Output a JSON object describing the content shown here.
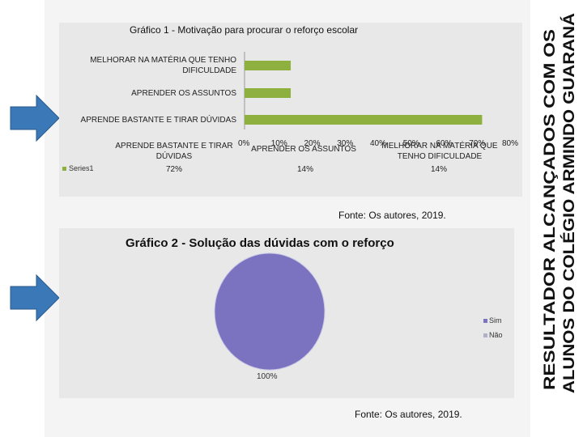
{
  "side_title": {
    "line1": "RESULTADOR ALCANÇADOS COM OS",
    "line2": "ALUNOS DO COLÉGIO ARMINDO GUARANÁ"
  },
  "chart1_source": "Fonte: Os autores, 2019.",
  "chart2_source": "Fonte: Os autores, 2019.",
  "colors": {
    "bar": "#8db03e",
    "pie_sim": "#7b73c0",
    "arrow": "#3a78b8",
    "panel": "#e8e8e8"
  },
  "chart_data": [
    {
      "type": "bar",
      "orientation": "horizontal",
      "title": "Gráfico 1 - Motivação para procurar o reforço escolar",
      "categories": [
        "MELHORAR NA MATÉRIA QUE TENHO DIFICULDADE",
        "APRENDER OS ASSUNTOS",
        "APRENDE BASTANTE E TIRAR DÚVIDAS"
      ],
      "axis_categories": [
        "APRENDE BASTANTE E TIRAR DÚVIDAS",
        "APRENDER OS ASSUNTOS",
        "MELHORAR NA MATÉRIA QUE TENHO DIFICULDADE"
      ],
      "series": [
        {
          "name": "Series1",
          "values": [
            14,
            14,
            72
          ],
          "table_values": [
            "72%",
            "14%",
            "14%"
          ]
        }
      ],
      "xlim": [
        0,
        80
      ],
      "ticks": [
        "0%",
        "10%",
        "20%",
        "30%",
        "40%",
        "50%",
        "60%",
        "70%",
        "80%"
      ],
      "grid": false,
      "legend": "data-table"
    },
    {
      "type": "pie",
      "title": "Gráfico 2 - Solução das dúvidas com o reforço",
      "slices": [
        {
          "label": "Sim",
          "value": 100
        },
        {
          "label": "Não",
          "value": 0
        }
      ],
      "data_label": "100%",
      "legend": "right"
    }
  ]
}
